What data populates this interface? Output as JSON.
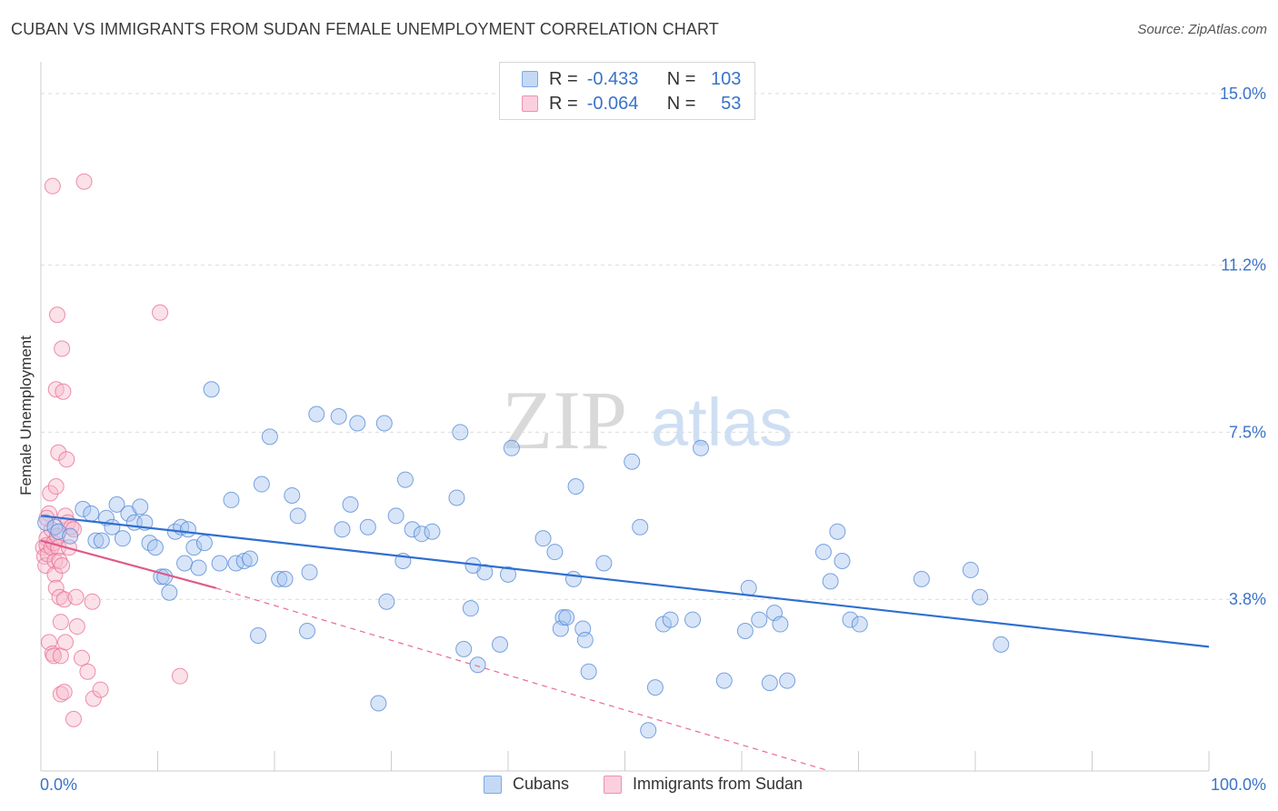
{
  "title": "CUBAN VS IMMIGRANTS FROM SUDAN FEMALE UNEMPLOYMENT CORRELATION CHART",
  "source": "Source: ZipAtlas.com",
  "watermark": {
    "zip": "ZIP",
    "atlas": "atlas"
  },
  "legend": {
    "rows": [
      {
        "r_label": "R =",
        "r_value": "-0.433",
        "n_label": "N =",
        "n_value": "103",
        "color": "#7aaae6",
        "fill": "#c5d9f5"
      },
      {
        "r_label": "R =",
        "r_value": "-0.064",
        "n_label": "N =",
        "n_value": "53",
        "color": "#f08fb0",
        "fill": "#fbd0de"
      }
    ]
  },
  "bottom_legend": [
    "Cubans",
    "Immigrants from Sudan"
  ],
  "chart_data": {
    "type": "scatter",
    "title": "CUBAN VS IMMIGRANTS FROM SUDAN FEMALE UNEMPLOYMENT CORRELATION CHART",
    "xlabel": "",
    "ylabel": "Female Unemployment",
    "xlim": [
      0,
      100
    ],
    "ylim": [
      0,
      15.5
    ],
    "x_tick_labels": [
      "0.0%",
      "100.0%"
    ],
    "y_ticks": [
      3.8,
      7.5,
      11.2,
      15.0
    ],
    "y_tick_labels": [
      "3.8%",
      "7.5%",
      "11.2%",
      "15.0%"
    ],
    "series": [
      {
        "name": "Cubans",
        "color": "#4f86d6",
        "fill": "#a9c6ef",
        "trend": {
          "x": [
            0,
            100
          ],
          "y": [
            5.65,
            2.75
          ]
        },
        "points": [
          [
            0.4,
            5.5
          ],
          [
            1.2,
            5.4
          ],
          [
            1.5,
            5.3
          ],
          [
            2.5,
            5.2
          ],
          [
            3.6,
            5.8
          ],
          [
            4.3,
            5.7
          ],
          [
            4.7,
            5.1
          ],
          [
            5.2,
            5.1
          ],
          [
            5.6,
            5.6
          ],
          [
            6.1,
            5.4
          ],
          [
            6.5,
            5.9
          ],
          [
            7.0,
            5.15
          ],
          [
            7.5,
            5.7
          ],
          [
            8.0,
            5.5
          ],
          [
            8.5,
            5.85
          ],
          [
            8.9,
            5.5
          ],
          [
            9.3,
            5.05
          ],
          [
            9.8,
            4.95
          ],
          [
            10.3,
            4.3
          ],
          [
            10.6,
            4.3
          ],
          [
            11.0,
            3.95
          ],
          [
            11.5,
            5.3
          ],
          [
            12.0,
            5.4
          ],
          [
            12.3,
            4.6
          ],
          [
            12.6,
            5.35
          ],
          [
            13.1,
            4.95
          ],
          [
            13.5,
            4.5
          ],
          [
            14.0,
            5.05
          ],
          [
            14.6,
            8.45
          ],
          [
            15.3,
            4.6
          ],
          [
            16.3,
            6.0
          ],
          [
            16.7,
            4.6
          ],
          [
            17.4,
            4.65
          ],
          [
            17.9,
            4.7
          ],
          [
            18.6,
            3.0
          ],
          [
            18.9,
            6.35
          ],
          [
            19.6,
            7.4
          ],
          [
            20.4,
            4.25
          ],
          [
            20.9,
            4.25
          ],
          [
            21.5,
            6.1
          ],
          [
            22.0,
            5.65
          ],
          [
            22.8,
            3.1
          ],
          [
            23.0,
            4.4
          ],
          [
            23.6,
            7.9
          ],
          [
            25.5,
            7.85
          ],
          [
            25.8,
            5.35
          ],
          [
            26.5,
            5.9
          ],
          [
            27.1,
            7.7
          ],
          [
            28.0,
            5.4
          ],
          [
            28.9,
            1.5
          ],
          [
            29.4,
            7.7
          ],
          [
            29.6,
            3.75
          ],
          [
            30.4,
            5.65
          ],
          [
            31.2,
            6.45
          ],
          [
            31.8,
            5.35
          ],
          [
            32.6,
            5.25
          ],
          [
            33.5,
            5.3
          ],
          [
            35.6,
            6.05
          ],
          [
            31.0,
            4.65
          ],
          [
            35.9,
            7.5
          ],
          [
            36.2,
            2.7
          ],
          [
            36.8,
            3.6
          ],
          [
            37.4,
            2.35
          ],
          [
            38.0,
            4.4
          ],
          [
            37.0,
            4.55
          ],
          [
            39.3,
            2.8
          ],
          [
            40.3,
            7.15
          ],
          [
            40.0,
            4.35
          ],
          [
            45.6,
            4.25
          ],
          [
            43.0,
            5.15
          ],
          [
            44.0,
            4.85
          ],
          [
            44.7,
            3.4
          ],
          [
            44.5,
            3.15
          ],
          [
            45.0,
            3.4
          ],
          [
            45.8,
            6.3
          ],
          [
            46.4,
            3.15
          ],
          [
            46.6,
            2.9
          ],
          [
            46.9,
            2.2
          ],
          [
            48.2,
            4.6
          ],
          [
            50.6,
            6.85
          ],
          [
            51.3,
            5.4
          ],
          [
            52.0,
            0.9
          ],
          [
            52.6,
            1.85
          ],
          [
            53.3,
            3.25
          ],
          [
            53.9,
            3.35
          ],
          [
            55.8,
            3.35
          ],
          [
            56.5,
            7.15
          ],
          [
            58.5,
            2.0
          ],
          [
            60.3,
            3.1
          ],
          [
            60.6,
            4.05
          ],
          [
            61.5,
            3.35
          ],
          [
            62.4,
            1.95
          ],
          [
            62.8,
            3.5
          ],
          [
            63.3,
            3.25
          ],
          [
            63.9,
            2.0
          ],
          [
            67.0,
            4.85
          ],
          [
            67.6,
            4.2
          ],
          [
            68.2,
            5.3
          ],
          [
            68.6,
            4.65
          ],
          [
            69.3,
            3.35
          ],
          [
            70.1,
            3.25
          ],
          [
            75.4,
            4.25
          ],
          [
            79.6,
            4.45
          ],
          [
            80.4,
            3.85
          ],
          [
            82.2,
            2.8
          ]
        ]
      },
      {
        "name": "Immigrants from Sudan",
        "color": "#e86b95",
        "fill": "#f7bccd",
        "trend_solid": {
          "x": [
            0,
            15
          ],
          "y": [
            5.1,
            4.05
          ]
        },
        "trend_dashed": {
          "x": [
            15,
            67.5
          ],
          "y": [
            4.05,
            0
          ]
        },
        "points": [
          [
            0.2,
            4.95
          ],
          [
            0.3,
            4.75
          ],
          [
            0.4,
            4.55
          ],
          [
            0.5,
            5.15
          ],
          [
            0.5,
            5.0
          ],
          [
            0.6,
            4.8
          ],
          [
            0.7,
            5.7
          ],
          [
            0.8,
            6.15
          ],
          [
            0.7,
            2.85
          ],
          [
            0.9,
            5.35
          ],
          [
            0.9,
            4.95
          ],
          [
            1.0,
            12.95
          ],
          [
            1.0,
            2.6
          ],
          [
            1.1,
            2.55
          ],
          [
            1.1,
            5.05
          ],
          [
            1.2,
            4.65
          ],
          [
            1.2,
            4.35
          ],
          [
            1.3,
            6.3
          ],
          [
            1.3,
            8.45
          ],
          [
            1.3,
            4.05
          ],
          [
            1.4,
            5.2
          ],
          [
            1.4,
            10.1
          ],
          [
            1.5,
            7.05
          ],
          [
            1.5,
            4.95
          ],
          [
            1.6,
            4.65
          ],
          [
            1.6,
            3.85
          ],
          [
            1.7,
            3.3
          ],
          [
            1.7,
            2.55
          ],
          [
            1.7,
            1.7
          ],
          [
            1.8,
            4.55
          ],
          [
            1.8,
            9.35
          ],
          [
            1.9,
            8.4
          ],
          [
            2.0,
            3.8
          ],
          [
            2.0,
            1.75
          ],
          [
            2.1,
            5.65
          ],
          [
            2.1,
            2.85
          ],
          [
            2.2,
            6.9
          ],
          [
            2.3,
            5.5
          ],
          [
            2.4,
            4.95
          ],
          [
            2.6,
            5.4
          ],
          [
            2.8,
            5.35
          ],
          [
            2.8,
            1.15
          ],
          [
            3.0,
            3.85
          ],
          [
            3.1,
            3.2
          ],
          [
            3.5,
            2.5
          ],
          [
            3.7,
            13.05
          ],
          [
            4.0,
            2.2
          ],
          [
            4.4,
            3.75
          ],
          [
            4.5,
            1.6
          ],
          [
            5.1,
            1.8
          ],
          [
            10.2,
            10.15
          ],
          [
            11.9,
            2.1
          ],
          [
            0.5,
            5.6
          ]
        ]
      }
    ]
  }
}
